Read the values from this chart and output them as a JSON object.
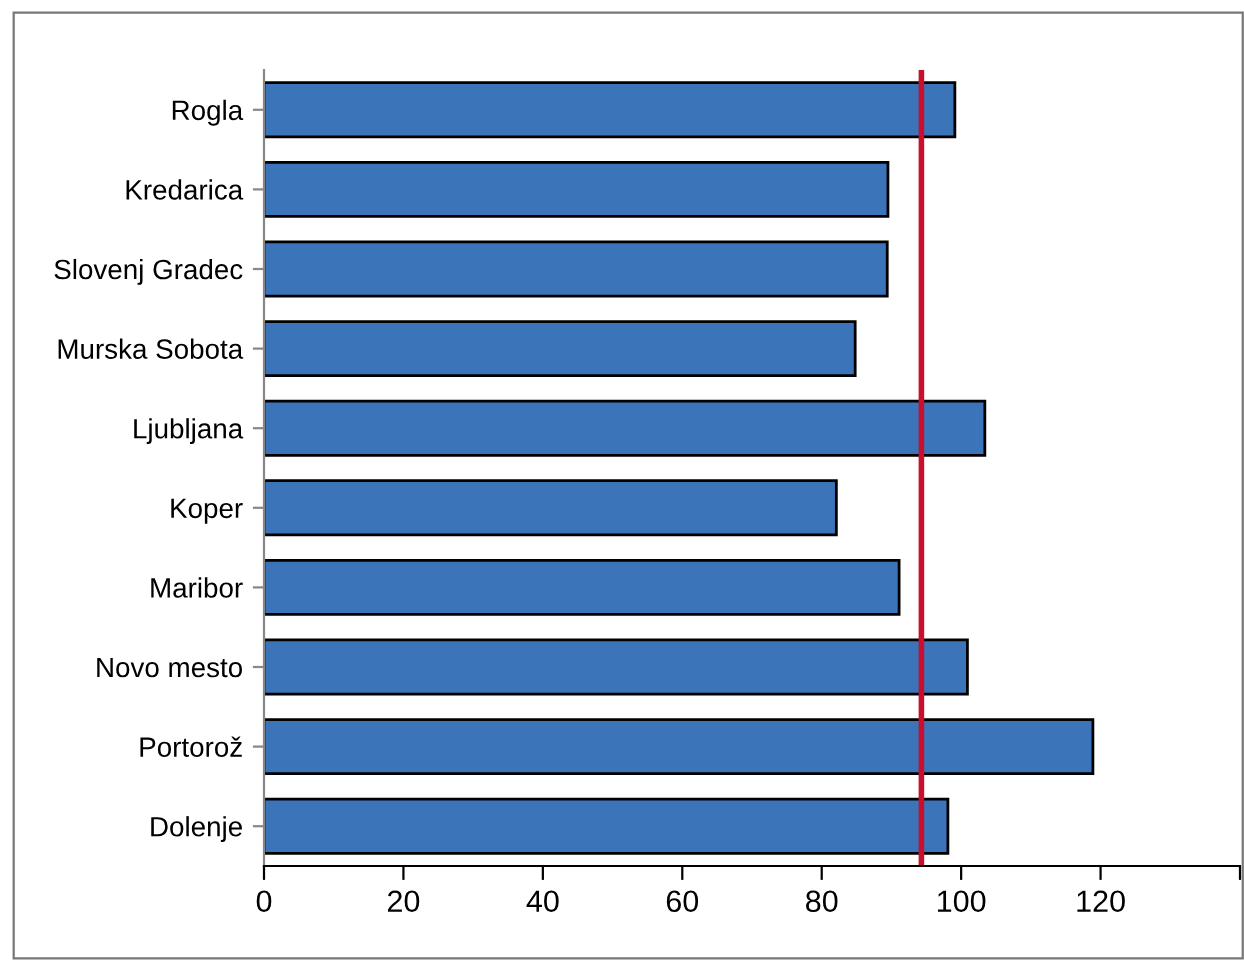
{
  "chart_data": {
    "type": "bar",
    "orientation": "horizontal",
    "categories": [
      "Rogla",
      "Kredarica",
      "Slovenj Gradec",
      "Murska Sobota",
      "Ljubljana",
      "Koper",
      "Maribor",
      "Novo mesto",
      "Portorož",
      "Dolenje"
    ],
    "values": [
      99.1,
      89.5,
      89.4,
      84.8,
      103.4,
      82.1,
      91.1,
      100.9,
      118.9,
      98.1
    ],
    "color": "#3b74b8",
    "xlim": [
      0,
      140
    ],
    "xticks": [
      0,
      20,
      40,
      60,
      80,
      100,
      120,
      {
        "value": 140,
        "label": null
      }
    ],
    "ref_lines": [
      {
        "axis": "x",
        "value": 94.3,
        "color": "#c8102e"
      }
    ],
    "grid": false,
    "legend": false
  }
}
